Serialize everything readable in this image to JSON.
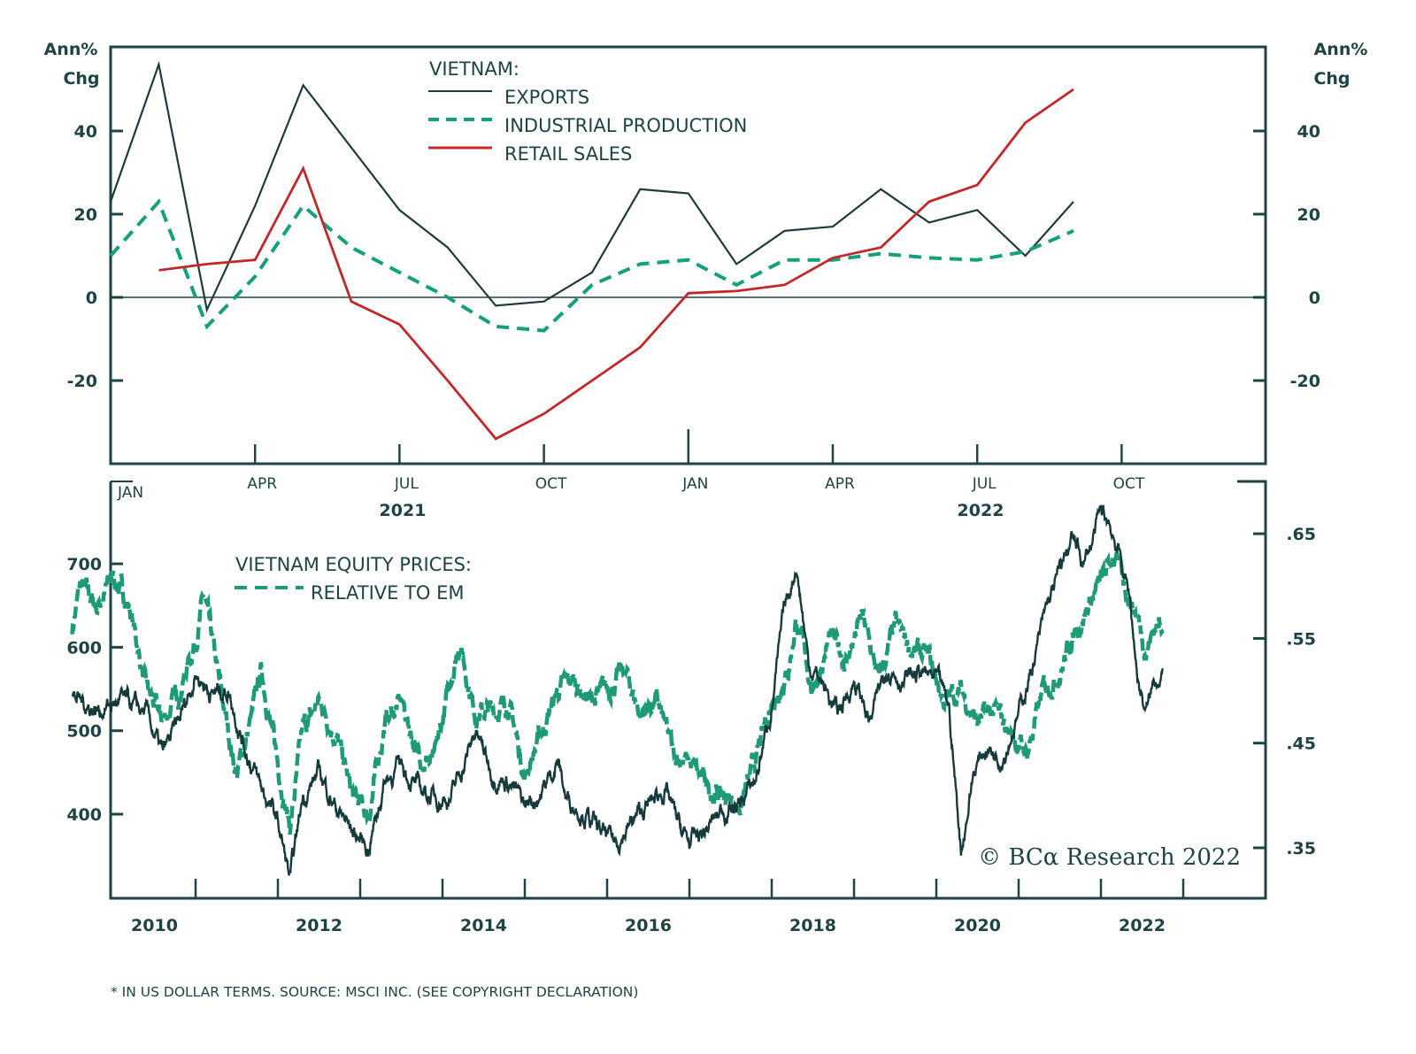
{
  "colors": {
    "frame": "#1d4345",
    "exports": "#1d3b3d",
    "industrial_production": "#14a07a",
    "retail_sales": "#c2282a",
    "equity": "#163a3c",
    "relative": "#1f9a78"
  },
  "chart_data": [
    {
      "type": "line",
      "panel": "top",
      "title": "VIETNAM:",
      "ylabel_left": [
        "Ann%",
        "Chg"
      ],
      "ylabel_right": [
        "Ann%",
        "Chg"
      ],
      "ylim": [
        -40,
        60
      ],
      "yticks": [
        -20,
        0,
        20,
        40
      ],
      "ytick_labels": [
        "-20",
        "0",
        "20",
        "40"
      ],
      "zero_line": true,
      "x_tick_labels": [
        "JAN",
        "APR",
        "JUL",
        "OCT",
        "JAN",
        "APR",
        "JUL",
        "OCT"
      ],
      "year_labels": [
        {
          "label": "2021",
          "under": "JUL"
        },
        {
          "label": "2022",
          "under": "JUL"
        }
      ],
      "x": [
        "2021-01",
        "2021-02",
        "2021-03",
        "2021-04",
        "2021-05",
        "2021-06",
        "2021-07",
        "2021-08",
        "2021-09",
        "2021-10",
        "2021-11",
        "2021-12",
        "2022-01",
        "2022-02",
        "2022-03",
        "2022-04",
        "2022-05",
        "2022-06",
        "2022-07",
        "2022-08",
        "2022-09"
      ],
      "series": [
        {
          "name": "EXPORTS",
          "style": "solid",
          "values": [
            23,
            56,
            -3,
            22,
            51,
            36,
            21,
            12,
            -2,
            -1,
            6,
            26,
            25,
            8,
            16,
            17,
            26,
            18,
            21,
            10,
            23
          ]
        },
        {
          "name": "INDUSTRIAL PRODUCTION",
          "style": "dashed",
          "values": [
            10,
            23,
            -7,
            5,
            22,
            12,
            6,
            0,
            -7,
            -8,
            3,
            8,
            9,
            3,
            9,
            9,
            10.5,
            9.5,
            9,
            11,
            16
          ]
        },
        {
          "name": "RETAIL SALES",
          "style": "solid",
          "values": [
            null,
            6.5,
            8,
            9,
            31,
            -1,
            -6.5,
            -20,
            -34,
            -28,
            -20,
            -12,
            1,
            1.5,
            3,
            9.5,
            12,
            23,
            27,
            42,
            50
          ]
        }
      ],
      "legend": {
        "title": "VIETNAM:",
        "position": "top-center",
        "entries": [
          "EXPORTS",
          "INDUSTRIAL PRODUCTION",
          "RETAIL SALES"
        ]
      }
    },
    {
      "type": "line",
      "panel": "bottom",
      "legend": {
        "title": "VIETNAM EQUITY PRICES:",
        "position": "top-left",
        "entries": [
          "RELATIVE TO EM"
        ]
      },
      "ylim_left": [
        305,
        780
      ],
      "yticks_left": [
        400,
        500,
        600,
        700
      ],
      "ytick_labels_left": [
        "400",
        "500",
        "600",
        "700"
      ],
      "ylim_right": [
        0.307,
        0.71
      ],
      "yticks_right": [
        0.35,
        0.45,
        0.55,
        0.65
      ],
      "ytick_labels_right": [
        ".35",
        ".45",
        ".55",
        ".65"
      ],
      "x_tick_labels": [
        "2010",
        "2012",
        "2014",
        "2016",
        "2018",
        "2020",
        "2022"
      ],
      "xlim": [
        2009.5,
        2023.5
      ],
      "series": [
        {
          "name": "VIETNAM EQUITY PRICES*",
          "axis": "left",
          "style": "solid",
          "anchors": [
            [
              2009.5,
              540
            ],
            [
              2009.8,
              525
            ],
            [
              2010.1,
              535
            ],
            [
              2010.4,
              520
            ],
            [
              2010.6,
              470
            ],
            [
              2010.8,
              510
            ],
            [
              2011.0,
              570
            ],
            [
              2011.2,
              545
            ],
            [
              2011.4,
              550
            ],
            [
              2011.6,
              480
            ],
            [
              2011.8,
              430
            ],
            [
              2012.0,
              390
            ],
            [
              2012.15,
              320
            ],
            [
              2012.3,
              420
            ],
            [
              2012.5,
              450
            ],
            [
              2012.7,
              410
            ],
            [
              2012.9,
              380
            ],
            [
              2013.1,
              360
            ],
            [
              2013.3,
              440
            ],
            [
              2013.5,
              460
            ],
            [
              2013.7,
              430
            ],
            [
              2013.9,
              420
            ],
            [
              2014.1,
              420
            ],
            [
              2014.3,
              470
            ],
            [
              2014.4,
              500
            ],
            [
              2014.6,
              450
            ],
            [
              2014.8,
              440
            ],
            [
              2015.0,
              410
            ],
            [
              2015.2,
              425
            ],
            [
              2015.4,
              465
            ],
            [
              2015.5,
              420
            ],
            [
              2015.7,
              405
            ],
            [
              2015.9,
              380
            ],
            [
              2016.1,
              365
            ],
            [
              2016.3,
              390
            ],
            [
              2016.5,
              410
            ],
            [
              2016.7,
              430
            ],
            [
              2016.9,
              380
            ],
            [
              2017.0,
              365
            ],
            [
              2017.2,
              380
            ],
            [
              2017.4,
              405
            ],
            [
              2017.6,
              410
            ],
            [
              2017.8,
              440
            ],
            [
              2018.0,
              530
            ],
            [
              2018.15,
              640
            ],
            [
              2018.3,
              700
            ],
            [
              2018.45,
              580
            ],
            [
              2018.6,
              560
            ],
            [
              2018.8,
              520
            ],
            [
              2019.0,
              560
            ],
            [
              2019.2,
              510
            ],
            [
              2019.4,
              580
            ],
            [
              2019.6,
              560
            ],
            [
              2019.8,
              570
            ],
            [
              2020.0,
              560
            ],
            [
              2020.15,
              530
            ],
            [
              2020.3,
              355
            ],
            [
              2020.45,
              450
            ],
            [
              2020.6,
              480
            ],
            [
              2020.8,
              470
            ],
            [
              2021.0,
              520
            ],
            [
              2021.2,
              590
            ],
            [
              2021.35,
              650
            ],
            [
              2021.5,
              690
            ],
            [
              2021.65,
              730
            ],
            [
              2021.8,
              700
            ],
            [
              2022.0,
              760
            ],
            [
              2022.1,
              750
            ],
            [
              2022.2,
              720
            ],
            [
              2022.35,
              660
            ],
            [
              2022.45,
              560
            ],
            [
              2022.55,
              520
            ],
            [
              2022.65,
              560
            ],
            [
              2022.75,
              575
            ]
          ]
        },
        {
          "name": "RELATIVE TO EM",
          "axis": "right",
          "style": "dashed",
          "anchors": [
            [
              2009.5,
              0.56
            ],
            [
              2009.6,
              0.6
            ],
            [
              2009.8,
              0.58
            ],
            [
              2010.0,
              0.61
            ],
            [
              2010.2,
              0.58
            ],
            [
              2010.4,
              0.5
            ],
            [
              2010.6,
              0.47
            ],
            [
              2010.8,
              0.5
            ],
            [
              2011.0,
              0.55
            ],
            [
              2011.1,
              0.59
            ],
            [
              2011.3,
              0.5
            ],
            [
              2011.5,
              0.42
            ],
            [
              2011.7,
              0.48
            ],
            [
              2011.8,
              0.52
            ],
            [
              2012.0,
              0.43
            ],
            [
              2012.15,
              0.37
            ],
            [
              2012.3,
              0.46
            ],
            [
              2012.5,
              0.49
            ],
            [
              2012.7,
              0.46
            ],
            [
              2012.9,
              0.4
            ],
            [
              2013.1,
              0.38
            ],
            [
              2013.3,
              0.47
            ],
            [
              2013.5,
              0.49
            ],
            [
              2013.7,
              0.44
            ],
            [
              2013.9,
              0.43
            ],
            [
              2014.1,
              0.51
            ],
            [
              2014.2,
              0.55
            ],
            [
              2014.4,
              0.48
            ],
            [
              2014.6,
              0.48
            ],
            [
              2014.8,
              0.49
            ],
            [
              2015.0,
              0.42
            ],
            [
              2015.2,
              0.46
            ],
            [
              2015.4,
              0.5
            ],
            [
              2015.6,
              0.51
            ],
            [
              2015.8,
              0.49
            ],
            [
              2016.0,
              0.5
            ],
            [
              2016.2,
              0.52
            ],
            [
              2016.4,
              0.48
            ],
            [
              2016.6,
              0.49
            ],
            [
              2016.8,
              0.44
            ],
            [
              2017.0,
              0.43
            ],
            [
              2017.2,
              0.41
            ],
            [
              2017.4,
              0.4
            ],
            [
              2017.6,
              0.39
            ],
            [
              2017.8,
              0.43
            ],
            [
              2018.0,
              0.49
            ],
            [
              2018.2,
              0.52
            ],
            [
              2018.3,
              0.57
            ],
            [
              2018.5,
              0.5
            ],
            [
              2018.7,
              0.55
            ],
            [
              2018.9,
              0.53
            ],
            [
              2019.1,
              0.57
            ],
            [
              2019.3,
              0.51
            ],
            [
              2019.5,
              0.56
            ],
            [
              2019.7,
              0.54
            ],
            [
              2019.9,
              0.53
            ],
            [
              2020.1,
              0.49
            ],
            [
              2020.3,
              0.5
            ],
            [
              2020.5,
              0.47
            ],
            [
              2020.7,
              0.48
            ],
            [
              2020.9,
              0.46
            ],
            [
              2021.1,
              0.44
            ],
            [
              2021.3,
              0.5
            ],
            [
              2021.5,
              0.52
            ],
            [
              2021.7,
              0.56
            ],
            [
              2021.9,
              0.59
            ],
            [
              2022.05,
              0.61
            ],
            [
              2022.15,
              0.63
            ],
            [
              2022.3,
              0.6
            ],
            [
              2022.45,
              0.57
            ],
            [
              2022.55,
              0.54
            ],
            [
              2022.65,
              0.56
            ],
            [
              2022.75,
              0.57
            ]
          ]
        }
      ]
    }
  ],
  "top_panel": {
    "left_axis_title_line1": "Ann%",
    "left_axis_title_line2": "Chg",
    "right_axis_title_line1": "Ann%",
    "right_axis_title_line2": "Chg",
    "legend_title": "VIETNAM:",
    "legend_exports": "EXPORTS",
    "legend_ip": "INDUSTRIAL PRODUCTION",
    "legend_retail": "RETAIL SALES",
    "year_2021": "2021",
    "year_2022": "2022"
  },
  "bottom_panel": {
    "legend_title": "VIETNAM EQUITY PRICES:",
    "legend_relative": "RELATIVE TO EM",
    "copyright": "© BCα Research 2022"
  },
  "footnote": "* IN US DOLLAR TERMS. SOURCE: MSCI INC. (SEE COPYRIGHT DECLARATION)"
}
